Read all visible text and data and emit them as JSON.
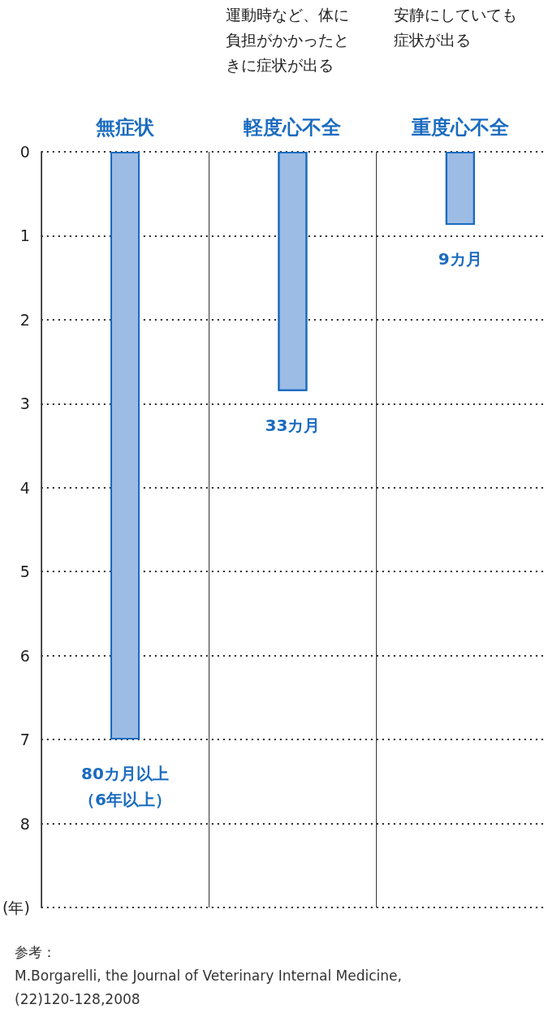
{
  "chart_data": {
    "type": "bar",
    "categories": [
      "無症状",
      "軽度心不全",
      "重度心不全"
    ],
    "values": [
      7,
      2.85,
      0.87
    ],
    "color": "#9cbce6",
    "ylim": [
      9,
      0
    ],
    "yticks": [
      0,
      1,
      2,
      3,
      4,
      5,
      6,
      7,
      8,
      {
        "value": 9,
        "label": "(年)"
      }
    ],
    "grid": true,
    "annotations": [
      {
        "text": "80カ月以上（6年以上）",
        "x": "無症状",
        "y": 7
      },
      {
        "text": "33カ月",
        "x": "軽度心不全",
        "y": 2.85
      },
      {
        "text": "9カ月",
        "x": "重度心不全",
        "y": 0.87
      },
      "運動時など、体に負担がかかったときに症状が出る",
      "安静にしていても症状が出る",
      "参考：",
      "M.Borgarelli, the Journal of Veterinary Internal Medicine,\n(22)120-128,2008"
    ]
  }
}
